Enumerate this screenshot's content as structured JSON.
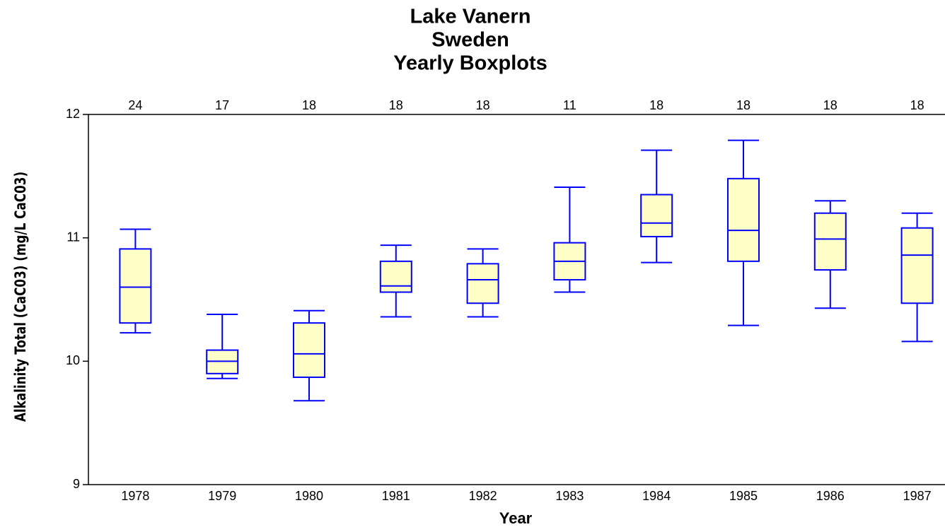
{
  "chart_data": {
    "type": "boxplot",
    "title": [
      "Lake Vanern",
      "Sweden",
      "Yearly Boxplots"
    ],
    "x_label": "Year",
    "y_label": "Alkalinity Total (CaC03)  (mg/L CaC03)",
    "categories": [
      "1978",
      "1979",
      "1980",
      "1981",
      "1982",
      "1983",
      "1984",
      "1985",
      "1986",
      "1987"
    ],
    "counts": [
      "24",
      "17",
      "18",
      "18",
      "18",
      "11",
      "18",
      "18",
      "18",
      "18"
    ],
    "min": [
      10.23,
      9.86,
      9.68,
      10.36,
      10.36,
      10.56,
      10.8,
      10.29,
      10.43,
      10.16
    ],
    "q1": [
      10.31,
      9.9,
      9.87,
      10.56,
      10.47,
      10.66,
      11.01,
      10.81,
      10.74,
      10.47
    ],
    "median": [
      10.6,
      10.0,
      10.06,
      10.61,
      10.66,
      10.81,
      11.12,
      11.06,
      10.99,
      10.86
    ],
    "q3": [
      10.91,
      10.09,
      10.31,
      10.81,
      10.79,
      10.96,
      11.35,
      11.48,
      11.2,
      11.08
    ],
    "max": [
      11.07,
      10.38,
      10.41,
      10.94,
      10.91,
      11.41,
      11.71,
      11.79,
      11.3,
      11.2
    ],
    "box_color": "#ffffc8",
    "line_color": "#0000ff",
    "ylim": [
      9,
      12
    ],
    "yticks": [
      9,
      10,
      11,
      12
    ]
  }
}
